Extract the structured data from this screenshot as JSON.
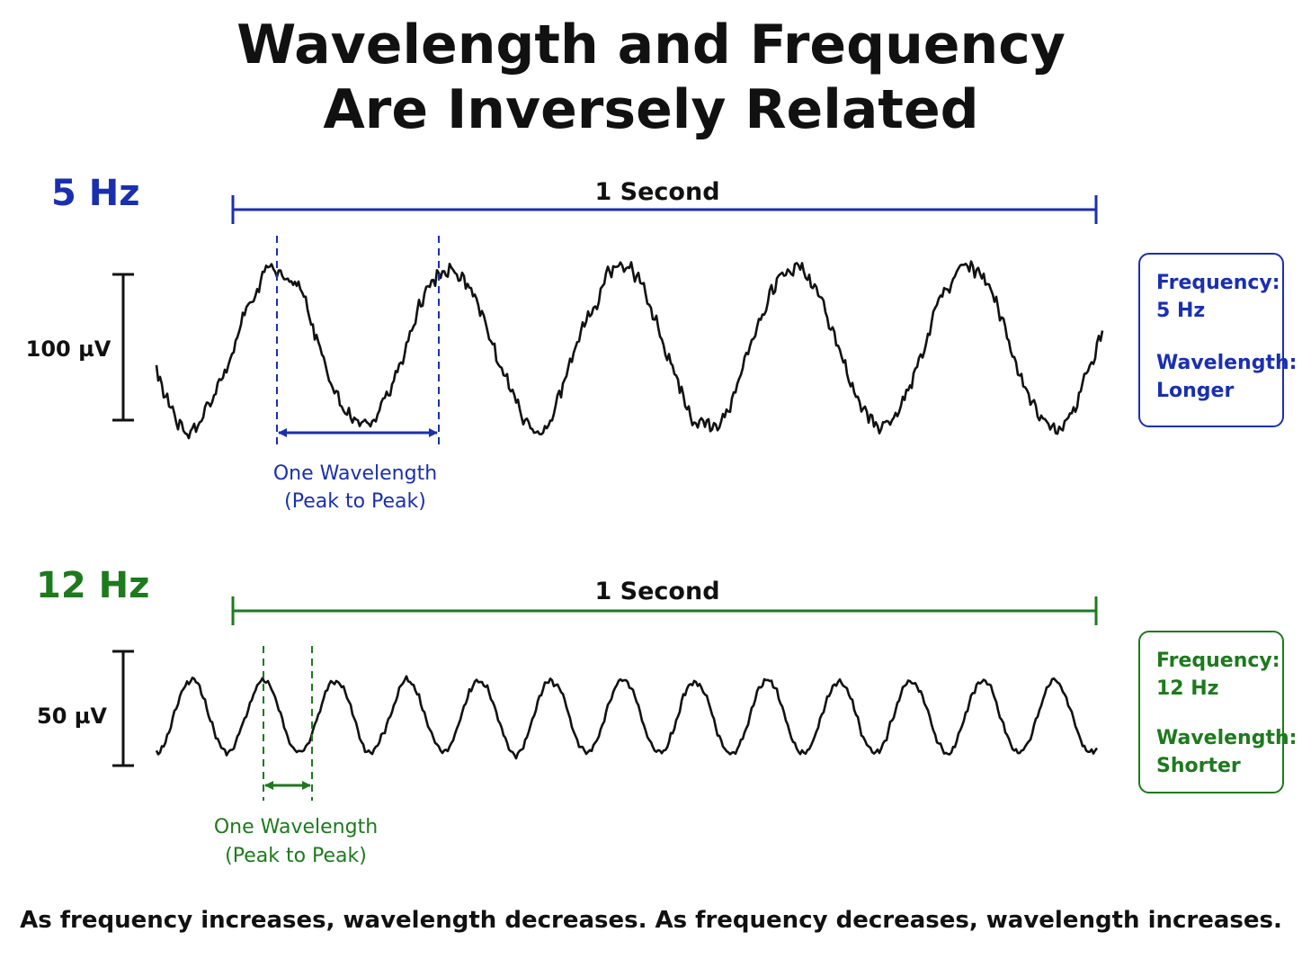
{
  "title": {
    "line1": "Wavelength and Frequency",
    "line2": "Are Inversely Related"
  },
  "panels": [
    {
      "id": "5hz",
      "freq_label": "5 Hz",
      "duration_label": "1 Second",
      "amplitude_label": "100 µV",
      "wavelength_label_line1": "One Wavelength",
      "wavelength_label_line2": "(Peak to Peak)",
      "color": "#1a2fb0",
      "frequency_hz": 5,
      "info": {
        "frequency_label": "Frequency:",
        "frequency_value": "5 Hz",
        "wavelength_label": "Wavelength:",
        "wavelength_value": "Longer"
      }
    },
    {
      "id": "12hz",
      "freq_label": "12 Hz",
      "duration_label": "1 Second",
      "amplitude_label": "50 µV",
      "wavelength_label_line1": "One Wavelength",
      "wavelength_label_line2": "(Peak to Peak)",
      "color": "#1d7a1d",
      "frequency_hz": 12,
      "info": {
        "frequency_label": "Frequency:",
        "frequency_value": "12 Hz",
        "wavelength_label": "Wavelength:",
        "wavelength_value": "Shorter"
      }
    }
  ],
  "footer": "As frequency increases, wavelength decreases. As frequency decreases, wavelength increases."
}
